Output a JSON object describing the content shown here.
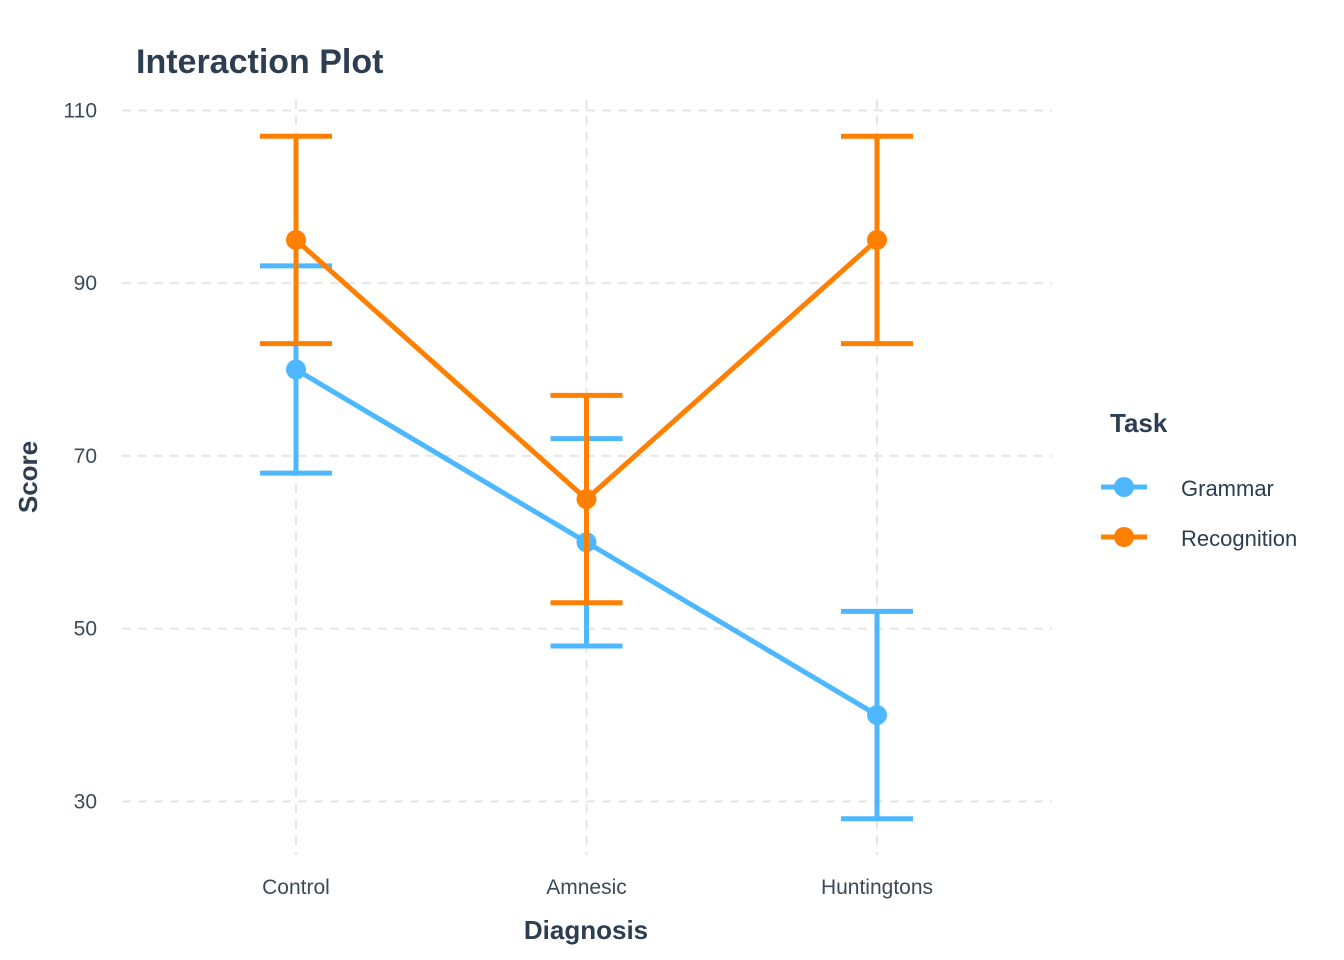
{
  "chart_data": {
    "type": "line",
    "title": "Interaction Plot",
    "xlabel": "Diagnosis",
    "ylabel": "Score",
    "categories": [
      "Control",
      "Amnesic",
      "Huntingtons"
    ],
    "ylim": [
      23.8,
      111.2
    ],
    "yticks": [
      30,
      50,
      70,
      90,
      110
    ],
    "ytick_labels": [
      "30",
      "50",
      "70",
      "90",
      "110"
    ],
    "grid": true,
    "legend": {
      "title": "Task",
      "placement": "right"
    },
    "series": [
      {
        "name": "Grammar",
        "color": "#4db8ff",
        "values": [
          80,
          60,
          40
        ],
        "lower": [
          68,
          48,
          28
        ],
        "upper": [
          92,
          72,
          52
        ]
      },
      {
        "name": "Recognition",
        "color": "#ff7f00",
        "values": [
          95,
          65,
          95
        ],
        "lower": [
          83,
          53,
          83
        ],
        "upper": [
          107,
          77,
          107
        ]
      }
    ]
  }
}
